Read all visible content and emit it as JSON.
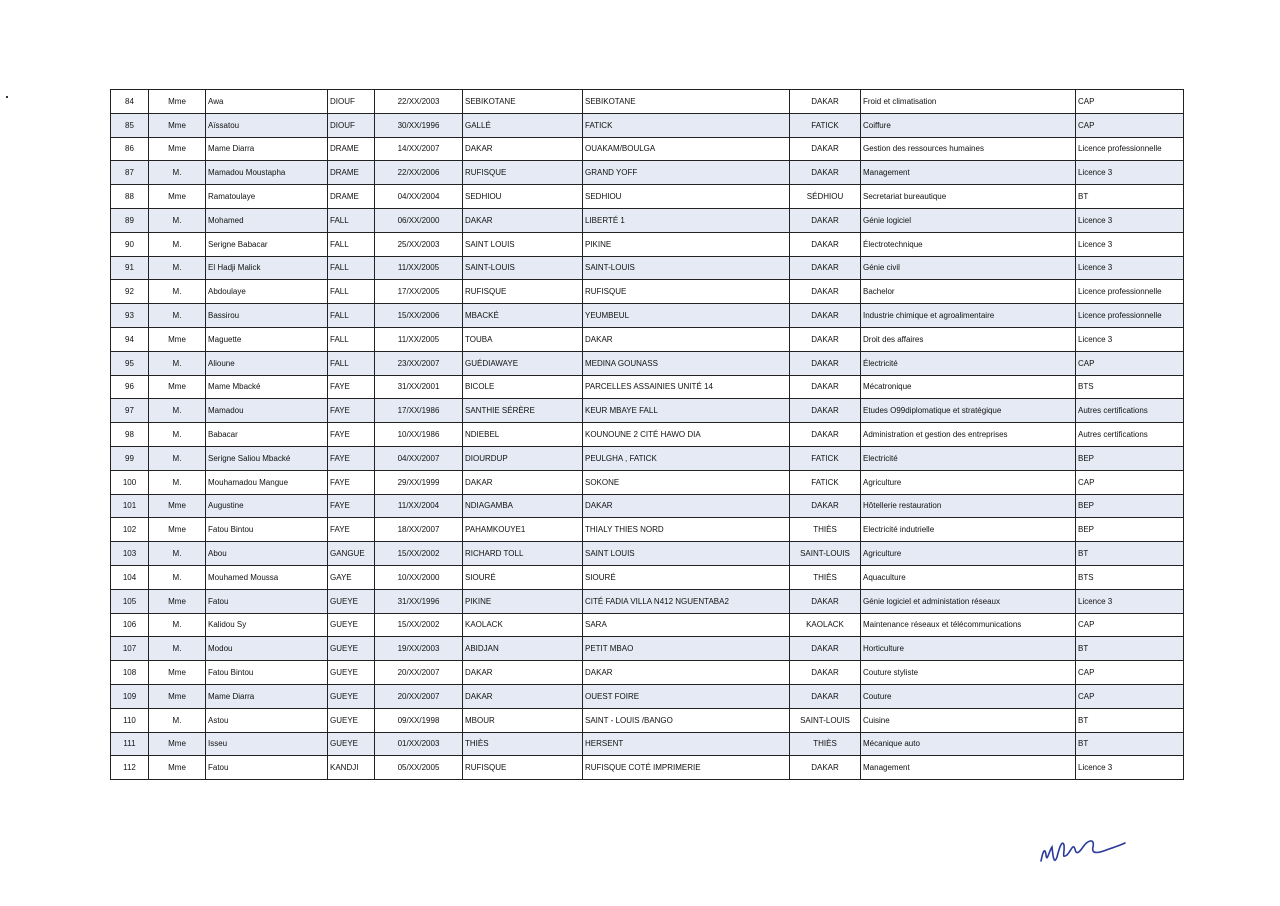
{
  "rows": [
    [
      "84",
      "Mme",
      "Awa",
      "DIOUF",
      "22/XX/2003",
      "SEBIKOTANE",
      "SEBIKOTANE",
      "DAKAR",
      "Froid et climatisation",
      "CAP"
    ],
    [
      "85",
      "Mme",
      "Aïssatou",
      "DIOUF",
      "30/XX/1996",
      "GALLÉ",
      "FATICK",
      "FATICK",
      "Coiffure",
      "CAP"
    ],
    [
      "86",
      "Mme",
      "Mame Diarra",
      "DRAME",
      "14/XX/2007",
      "DAKAR",
      "OUAKAM/BOULGA",
      "DAKAR",
      "Gestion des ressources humaines",
      "Licence professionnelle"
    ],
    [
      "87",
      "M.",
      "Mamadou Moustapha",
      "DRAME",
      "22/XX/2006",
      "RUFISQUE",
      "GRAND YOFF",
      "DAKAR",
      "Management",
      "Licence 3"
    ],
    [
      "88",
      "Mme",
      "Ramatoulaye",
      "DRAME",
      "04/XX/2004",
      "SEDHIOU",
      "SEDHIOU",
      "SÉDHIOU",
      "Secretariat bureautique",
      "BT"
    ],
    [
      "89",
      "M.",
      "Mohamed",
      "FALL",
      "06/XX/2000",
      "DAKAR",
      "LIBERTÉ 1",
      "DAKAR",
      "Génie logiciel",
      "Licence 3"
    ],
    [
      "90",
      "M.",
      "Serigne Babacar",
      "FALL",
      "25/XX/2003",
      "SAINT LOUIS",
      "PIKINE",
      "DAKAR",
      "Électrotechnique",
      "Licence 3"
    ],
    [
      "91",
      "M.",
      "El Hadji Malick",
      "FALL",
      "11/XX/2005",
      "SAINT-LOUIS",
      "SAINT-LOUIS",
      "DAKAR",
      "Génie civil",
      "Licence 3"
    ],
    [
      "92",
      "M.",
      "Abdoulaye",
      "FALL",
      "17/XX/2005",
      "RUFISQUE",
      "RUFISQUE",
      "DAKAR",
      "Bachelor",
      "Licence professionnelle"
    ],
    [
      "93",
      "M.",
      "Bassirou",
      "FALL",
      "15/XX/2006",
      "MBACKÉ",
      "YEUMBEUL",
      "DAKAR",
      "Industrie chimique et agroalimentaire",
      "Licence professionnelle"
    ],
    [
      "94",
      "Mme",
      "Maguette",
      "FALL",
      "11/XX/2005",
      "TOUBA",
      "DAKAR",
      "DAKAR",
      "Droit des affaires",
      "Licence 3"
    ],
    [
      "95",
      "M.",
      "Alioune",
      "FALL",
      "23/XX/2007",
      "GUÉDIAWAYE",
      "MEDINA GOUNASS",
      "DAKAR",
      "Électricité",
      "CAP"
    ],
    [
      "96",
      "Mme",
      "Mame Mbacké",
      "FAYE",
      "31/XX/2001",
      "BICOLE",
      "PARCELLES ASSAINIES UNITÉ 14",
      "DAKAR",
      "Mécatronique",
      "BTS"
    ],
    [
      "97",
      "M.",
      "Mamadou",
      "FAYE",
      "17/XX/1986",
      "SANTHIE SÉRÈRE",
      "KEUR MBAYE FALL",
      "DAKAR",
      "Etudes O99diplomatique et stratégique",
      "Autres certifications"
    ],
    [
      "98",
      "M.",
      "Babacar",
      "FAYE",
      "10/XX/1986",
      "NDIEBEL",
      "KOUNOUNE 2 CITÉ HAWO DIA",
      "DAKAR",
      "Administration et gestion des entreprises",
      "Autres certifications"
    ],
    [
      "99",
      "M.",
      "Serigne Saliou Mbacké",
      "FAYE",
      "04/XX/2007",
      "DIOURDUP",
      "PEULGHA , FATICK",
      "FATICK",
      "Electricité",
      "BEP"
    ],
    [
      "100",
      "M.",
      "Mouhamadou Mangue",
      "FAYE",
      "29/XX/1999",
      "DAKAR",
      "SOKONE",
      "FATICK",
      "Agriculture",
      "CAP"
    ],
    [
      "101",
      "Mme",
      "Augustine",
      "FAYE",
      "11/XX/2004",
      "NDIAGAMBA",
      "DAKAR",
      "DAKAR",
      "Hôtellerie restauration",
      "BEP"
    ],
    [
      "102",
      "Mme",
      "Fatou Bintou",
      "FAYE",
      "18/XX/2007",
      "PAHAMKOUYE1",
      "THIALY THIES NORD",
      "THIÈS",
      "Electricité indutrielle",
      "BEP"
    ],
    [
      "103",
      "M.",
      "Abou",
      "GANGUE",
      "15/XX/2002",
      "RICHARD TOLL",
      "SAINT LOUIS",
      "SAINT-LOUIS",
      "Agriculture",
      "BT"
    ],
    [
      "104",
      "M.",
      "Mouhamed Moussa",
      "GAYE",
      "10/XX/2000",
      "SIOURÉ",
      "SIOURÉ",
      "THIÈS",
      "Aquaculture",
      "BTS"
    ],
    [
      "105",
      "Mme",
      "Fatou",
      "GUEYE",
      "31/XX/1996",
      "PIKINE",
      "CITÉ FADIA VILLA N412 NGUENTABA2",
      "DAKAR",
      "Génie logiciel et administation réseaux",
      "Licence 3"
    ],
    [
      "106",
      "M.",
      "Kalidou Sy",
      "GUEYE",
      "15/XX/2002",
      "KAOLACK",
      "SARA",
      "KAOLACK",
      "Maintenance réseaux et télécommunications",
      "CAP"
    ],
    [
      "107",
      "M.",
      "Modou",
      "GUEYE",
      "19/XX/2003",
      "ABIDJAN",
      "PETIT MBAO",
      "DAKAR",
      "Horticulture",
      "BT"
    ],
    [
      "108",
      "Mme",
      "Fatou Bintou",
      "GUEYE",
      "20/XX/2007",
      "DAKAR",
      "DAKAR",
      "DAKAR",
      "Couture styliste",
      "CAP"
    ],
    [
      "109",
      "Mme",
      "Mame Diarra",
      "GUEYE",
      "20/XX/2007",
      "DAKAR",
      "OUEST FOIRE",
      "DAKAR",
      "Couture",
      "CAP"
    ],
    [
      "110",
      "M.",
      "Astou",
      "GUEYE",
      "09/XX/1998",
      "MBOUR",
      "SAINT - LOUIS /BANGO",
      "SAINT-LOUIS",
      "Cuisine",
      "BT"
    ],
    [
      "111",
      "Mme",
      "Isseu",
      "GUEYE",
      "01/XX/2003",
      "THIÈS",
      "HERSENT",
      "THIÈS",
      "Mécanique auto",
      "BT"
    ],
    [
      "112",
      "Mme",
      "Fatou",
      "KANDJI",
      "05/XX/2005",
      "RUFISQUE",
      "RUFISQUE COTÉ IMPRIMERIE",
      "DAKAR",
      "Management",
      "Licence 3"
    ]
  ],
  "colors": {
    "row_alt": "#e6eaf4",
    "border": "#222222"
  }
}
